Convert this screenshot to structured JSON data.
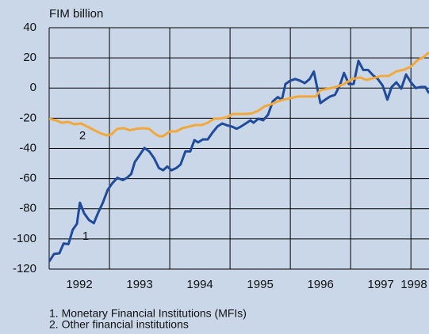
{
  "chart_data": {
    "type": "line",
    "y_label": "FIM billion",
    "xlim": [
      1992,
      1998.3
    ],
    "ylim": [
      -120,
      40
    ],
    "yticks": [
      40,
      20,
      0,
      -20,
      -40,
      -60,
      -80,
      -100,
      -120
    ],
    "xticks": [
      {
        "value": 1992.5,
        "label": "1992"
      },
      {
        "value": 1993.5,
        "label": "1993"
      },
      {
        "value": 1994.5,
        "label": "1994"
      },
      {
        "value": 1995.5,
        "label": "1995"
      },
      {
        "value": 1996.5,
        "label": "1996"
      },
      {
        "value": 1997.5,
        "label": "1997"
      },
      {
        "value": 1998.05,
        "label": "1998"
      }
    ],
    "xgrid": [
      1993,
      1994,
      1995,
      1996,
      1997,
      1998
    ],
    "grid": true,
    "annotations": [
      "1",
      "2"
    ],
    "series": [
      {
        "name": "1. Monetary Financial Institutions (MFIs)",
        "color": "#1f4b9a",
        "x": [
          1992.0,
          1992.08,
          1992.17,
          1992.24,
          1992.32,
          1992.39,
          1992.46,
          1992.51,
          1992.58,
          1992.66,
          1992.74,
          1992.82,
          1992.89,
          1992.97,
          1993.05,
          1993.13,
          1993.22,
          1993.29,
          1993.36,
          1993.42,
          1993.5,
          1993.58,
          1993.66,
          1993.74,
          1993.82,
          1993.89,
          1993.96,
          1994.03,
          1994.11,
          1994.18,
          1994.26,
          1994.34,
          1994.41,
          1994.47,
          1994.55,
          1994.63,
          1994.71,
          1994.79,
          1994.87,
          1994.95,
          1995.03,
          1995.11,
          1995.18,
          1995.26,
          1995.34,
          1995.39,
          1995.47,
          1995.55,
          1995.63,
          1995.71,
          1995.79,
          1995.86,
          1995.92,
          1996.0,
          1996.08,
          1996.16,
          1996.24,
          1996.32,
          1996.39,
          1996.42,
          1996.5,
          1996.58,
          1996.66,
          1996.74,
          1996.82,
          1996.89,
          1996.97,
          1997.05,
          1997.13,
          1997.21,
          1997.29,
          1997.37,
          1997.45,
          1997.53,
          1997.61,
          1997.68,
          1997.76,
          1997.84,
          1997.92,
          1998.0,
          1998.08,
          1998.16,
          1998.24,
          1998.3
        ],
        "values": [
          -115,
          -110,
          -109.5,
          -103,
          -103.5,
          -94,
          -90,
          -76,
          -83,
          -87.5,
          -89.5,
          -82,
          -76,
          -67.5,
          -63,
          -59.5,
          -61,
          -59.5,
          -57,
          -49,
          -44.5,
          -39.7,
          -42,
          -46.5,
          -53,
          -54.5,
          -52,
          -54.5,
          -53,
          -50.7,
          -42,
          -42,
          -34.5,
          -36,
          -34,
          -34,
          -29.5,
          -25.5,
          -23.5,
          -24.7,
          -25.5,
          -27,
          -25.5,
          -23.5,
          -21.4,
          -23,
          -20.3,
          -21.4,
          -17.7,
          -8.8,
          -6,
          -7.7,
          2.7,
          4.9,
          6,
          4.9,
          3.3,
          6,
          11,
          5,
          -10,
          -7.7,
          -5.6,
          -4.5,
          1.7,
          10,
          2.7,
          2.7,
          18,
          12,
          12,
          8.5,
          6,
          1.7,
          -7.7,
          0.7,
          3.8,
          -0.4,
          9,
          3.8,
          0,
          0.7,
          0.7,
          -3.5
        ]
      },
      {
        "name": "2. Other financial institutions",
        "color": "#f2a83a",
        "x": [
          1992.0,
          1992.11,
          1992.21,
          1992.32,
          1992.42,
          1992.53,
          1992.63,
          1992.74,
          1992.84,
          1992.95,
          1993.03,
          1993.13,
          1993.24,
          1993.34,
          1993.45,
          1993.55,
          1993.66,
          1993.74,
          1993.82,
          1993.89,
          1994.0,
          1994.11,
          1994.21,
          1994.32,
          1994.42,
          1994.53,
          1994.63,
          1994.74,
          1994.84,
          1994.95,
          1995.05,
          1995.13,
          1995.26,
          1995.37,
          1995.47,
          1995.58,
          1995.68,
          1995.79,
          1995.89,
          1996.0,
          1996.13,
          1996.26,
          1996.42,
          1996.5,
          1996.63,
          1996.76,
          1996.89,
          1997.03,
          1997.16,
          1997.26,
          1997.37,
          1997.5,
          1997.63,
          1997.76,
          1997.89,
          1998.0,
          1998.11,
          1998.21,
          1998.3
        ],
        "values": [
          -20.3,
          -21.4,
          -23,
          -22.5,
          -24,
          -23.5,
          -25.5,
          -27.7,
          -29.8,
          -31.3,
          -30.8,
          -27,
          -26.6,
          -28,
          -27,
          -26.6,
          -27,
          -29.8,
          -31.9,
          -31.9,
          -28.7,
          -28.7,
          -26.6,
          -25.5,
          -24.5,
          -24.5,
          -23,
          -20.3,
          -20.3,
          -19.3,
          -17.2,
          -17.2,
          -17.2,
          -16.7,
          -15,
          -12,
          -10.9,
          -8.8,
          -7.7,
          -6.7,
          -5.6,
          -5.6,
          -5.6,
          -1.4,
          -0.4,
          0.7,
          2.7,
          6,
          7,
          5.4,
          6.4,
          8,
          8,
          11.1,
          12.2,
          14.3,
          18.5,
          20.6,
          23.7
        ]
      }
    ]
  }
}
